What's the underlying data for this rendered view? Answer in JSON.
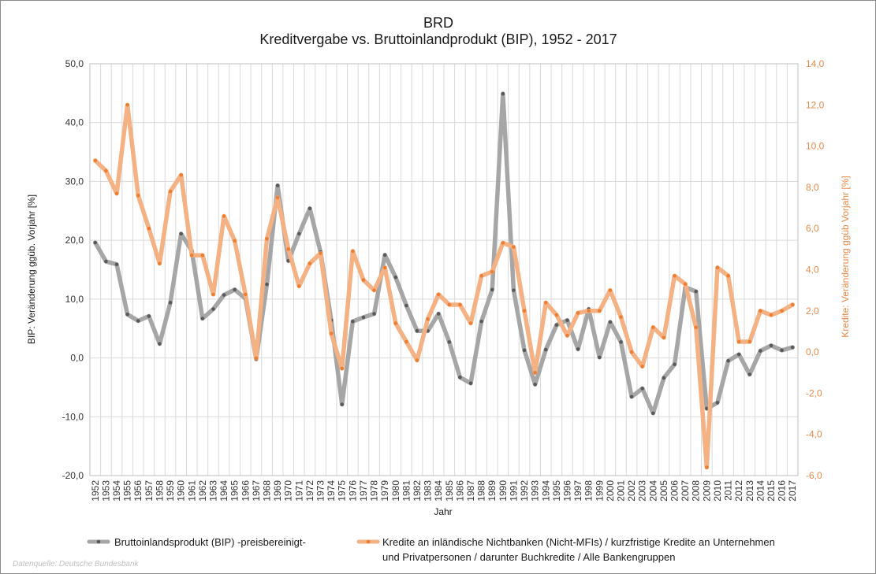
{
  "chart_data": {
    "type": "line",
    "title": "BRD",
    "subtitle": "Kreditvergabe vs. Bruttoinlandprodukt (BIP), 1952 - 2017",
    "xlabel": "Jahr",
    "ylabel_left": "BIP: Veränderung ggüb. Vorjahr [%]",
    "ylabel_right": "Kredite: Veränderung ggüb Vorjahr [%]",
    "ylim_left": [
      -20,
      50
    ],
    "ylim_right": [
      -6,
      14
    ],
    "yticks_left": [
      "50,0",
      "40,0",
      "30,0",
      "20,0",
      "10,0",
      "0,0",
      "-10,0",
      "-20,0"
    ],
    "yticks_right": [
      "14,0",
      "12,0",
      "10,0",
      "8,0",
      "6,0",
      "4,0",
      "2,0",
      "0,0",
      "-2,0",
      "-4,0",
      "-6,0"
    ],
    "grid": true,
    "legend_position": "bottom",
    "x": [
      "1952",
      "1953",
      "1954",
      "1955",
      "1956",
      "1957",
      "1958",
      "1959",
      "1960",
      "1961",
      "1962",
      "1963",
      "1964",
      "1965",
      "1966",
      "1967",
      "1968",
      "1969",
      "1970",
      "1971",
      "1972",
      "1973",
      "1974",
      "1975",
      "1976",
      "1977",
      "1978",
      "1979",
      "1980",
      "1981",
      "1982",
      "1983",
      "1984",
      "1985",
      "1986",
      "1987",
      "1988",
      "1989",
      "1990",
      "1991",
      "1992",
      "1993",
      "1994",
      "1995",
      "1996",
      "1997",
      "1998",
      "1999",
      "2000",
      "2001",
      "2002",
      "2003",
      "2004",
      "2005",
      "2006",
      "2007",
      "2008",
      "2009",
      "2010",
      "2011",
      "2012",
      "2013",
      "2014",
      "2015",
      "2016",
      "2017"
    ],
    "series": [
      {
        "name": "Bruttoinlandsprodukt (BIP) -preisbereinigt-",
        "axis": "left",
        "color": "#a6a6a6",
        "values": [
          19.6,
          16.4,
          15.9,
          7.4,
          6.3,
          7.1,
          2.4,
          9.4,
          21.1,
          18.2,
          6.7,
          8.3,
          10.7,
          11.6,
          10.1,
          -0.2,
          12.5,
          29.3,
          16.5,
          21.1,
          25.4,
          18.0,
          6.4,
          -7.9,
          6.2,
          6.9,
          7.5,
          17.5,
          13.7,
          8.9,
          4.6,
          4.6,
          7.5,
          2.7,
          -3.3,
          -4.3,
          6.2,
          11.6,
          44.9,
          11.5,
          1.3,
          -4.5,
          1.4,
          5.6,
          6.4,
          1.5,
          8.3,
          0.1,
          6.1,
          2.7,
          -6.6,
          -5.2,
          -9.4,
          -3.4,
          -1.1,
          12.0,
          11.3,
          -8.6,
          -7.6,
          -0.5,
          0.6,
          -2.8,
          1.2,
          2.1,
          1.3,
          1.8
        ]
      },
      {
        "name": "Kredite an inländische Nichtbanken (Nicht-MFIs) / kurzfristige Kredite an Unternehmen und Privatpersonen / darunter Buchkredite / Alle Bankengruppen",
        "axis": "right",
        "color": "#f4b183",
        "values": [
          9.3,
          8.8,
          7.7,
          12.0,
          7.6,
          6.0,
          4.3,
          7.8,
          8.6,
          4.7,
          4.7,
          2.8,
          6.6,
          5.4,
          2.8,
          -0.3,
          5.5,
          7.5,
          5.0,
          3.2,
          4.3,
          4.8,
          0.9,
          -0.8,
          4.9,
          3.5,
          3.0,
          4.1,
          1.4,
          0.5,
          -0.4,
          1.6,
          2.8,
          2.3,
          2.3,
          1.4,
          3.7,
          3.9,
          5.3,
          5.1,
          2.0,
          -1.0,
          2.4,
          1.8,
          0.8,
          1.9,
          2.0,
          2.0,
          3.0,
          1.7,
          0.0,
          -0.7,
          1.2,
          0.7,
          3.7,
          3.3,
          1.2,
          -5.6,
          4.1,
          3.7,
          0.5,
          0.5,
          2.0,
          1.8,
          2.0,
          2.3
        ]
      }
    ]
  },
  "legend": {
    "bip_label": "Bruttoinlandsprodukt (BIP) -preisbereinigt-",
    "kredit_label_line1": "Kredite an inländische Nichtbanken (Nicht-MFIs) / kurzfristige Kredite an Unternehmen",
    "kredit_label_line2": "und Privatpersonen / darunter Buchkredite / Alle Bankengruppen"
  },
  "source": "Datenquelle: Deutsche Bundesbank",
  "colors": {
    "bip_marker": "#595959",
    "kredit_marker": "#ed7d31",
    "right_axis_text": "#e8894a",
    "grid": "#d9d9d9"
  }
}
